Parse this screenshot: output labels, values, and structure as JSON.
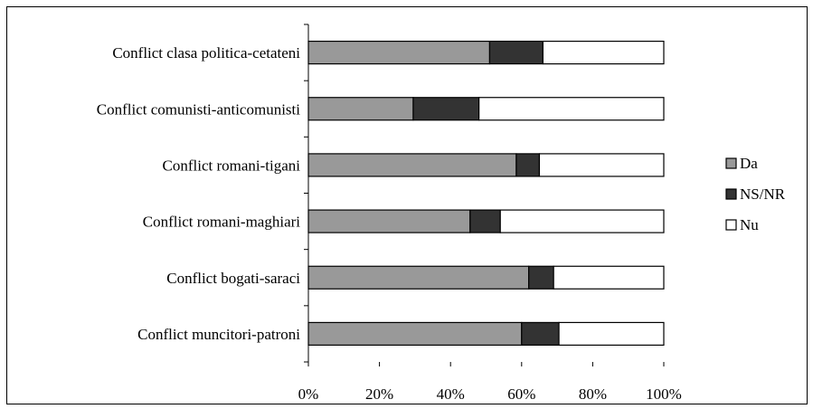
{
  "chart_data": {
    "type": "bar",
    "orientation": "horizontal",
    "stacked": true,
    "percent_stacked": true,
    "categories": [
      "Conflict clasa politica-cetateni",
      "Conflict comunisti-anticomunisti",
      "Conflict romani-tigani",
      "Conflict romani-maghiari",
      "Conflict bogati-saraci",
      "Conflict muncitori-patroni"
    ],
    "series": [
      {
        "name": "Da",
        "color": "#999999",
        "values": [
          51,
          29.5,
          58.5,
          45.5,
          62,
          60
        ]
      },
      {
        "name": "NS/NR",
        "color": "#333333",
        "values": [
          15,
          18.5,
          6.5,
          8.5,
          7,
          10.5
        ]
      },
      {
        "name": "Nu",
        "color": "#ffffff",
        "values": [
          34,
          52,
          35,
          46,
          31,
          29.5
        ]
      }
    ],
    "x_ticks": [
      "0%",
      "20%",
      "40%",
      "60%",
      "80%",
      "100%"
    ],
    "xlim": [
      0,
      100
    ],
    "legend": {
      "position": "right",
      "entries": [
        "Da",
        "NS/NR",
        "Nu"
      ]
    },
    "grid": false,
    "title": "",
    "xlabel": "",
    "ylabel": ""
  }
}
